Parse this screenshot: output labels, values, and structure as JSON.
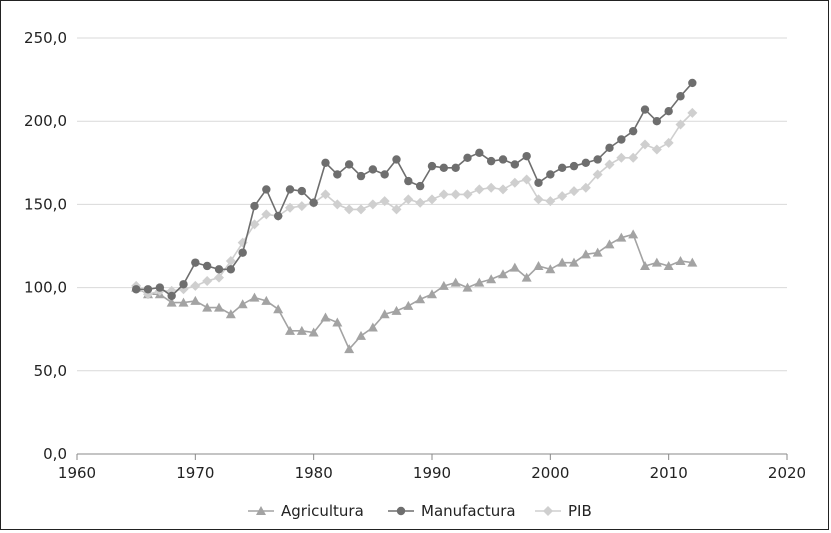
{
  "chart_data": {
    "type": "line",
    "title": "",
    "xlabel": "",
    "ylabel": "",
    "xlim": [
      1960,
      2020
    ],
    "ylim": [
      0,
      250
    ],
    "x_ticks": [
      "1960",
      "1970",
      "1980",
      "1990",
      "2000",
      "2010",
      "2020"
    ],
    "y_ticks": [
      "0,0",
      "50,0",
      "100,0",
      "150,0",
      "200,0",
      "250,0"
    ],
    "grid": "horizontal",
    "legend_position": "bottom",
    "x": [
      1965,
      1966,
      1967,
      1968,
      1969,
      1970,
      1971,
      1972,
      1973,
      1974,
      1975,
      1976,
      1977,
      1978,
      1979,
      1980,
      1981,
      1982,
      1983,
      1984,
      1985,
      1986,
      1987,
      1988,
      1989,
      1990,
      1991,
      1992,
      1993,
      1994,
      1995,
      1996,
      1997,
      1998,
      1999,
      2000,
      2001,
      2002,
      2003,
      2004,
      2005,
      2006,
      2007,
      2008,
      2009,
      2010,
      2011,
      2012
    ],
    "series": [
      {
        "name": "Agricultura",
        "color": "#a3a3a3",
        "marker": "triangle",
        "values": [
          100,
          96,
          96,
          91,
          91,
          92,
          88,
          88,
          84,
          90,
          94,
          92,
          87,
          74,
          74,
          73,
          82,
          79,
          63,
          71,
          76,
          84,
          86,
          89,
          93,
          96,
          101,
          103,
          100,
          103,
          105,
          108,
          112,
          106,
          113,
          111,
          115,
          115,
          120,
          121,
          126,
          130,
          132,
          113,
          115,
          113,
          116,
          115
        ]
      },
      {
        "name": "Manufactura",
        "color": "#6e6e6e",
        "marker": "circle",
        "values": [
          99,
          99,
          100,
          95,
          102,
          115,
          113,
          111,
          111,
          121,
          149,
          159,
          143,
          159,
          158,
          151,
          175,
          168,
          174,
          167,
          171,
          168,
          177,
          164,
          161,
          173,
          172,
          172,
          178,
          181,
          176,
          177,
          174,
          179,
          163,
          168,
          172,
          173,
          175,
          177,
          184,
          189,
          194,
          207,
          200,
          206,
          215,
          223
        ]
      },
      {
        "name": "PIB",
        "color": "#cfcfcf",
        "marker": "diamond",
        "values": [
          101,
          96,
          98,
          98,
          99,
          101,
          104,
          106,
          116,
          127,
          138,
          144,
          143,
          148,
          149,
          151,
          156,
          150,
          147,
          147,
          150,
          152,
          147,
          153,
          151,
          153,
          156,
          156,
          156,
          159,
          160,
          159,
          163,
          165,
          153,
          152,
          155,
          158,
          160,
          168,
          174,
          178,
          178,
          186,
          183,
          187,
          198,
          205
        ]
      }
    ]
  }
}
